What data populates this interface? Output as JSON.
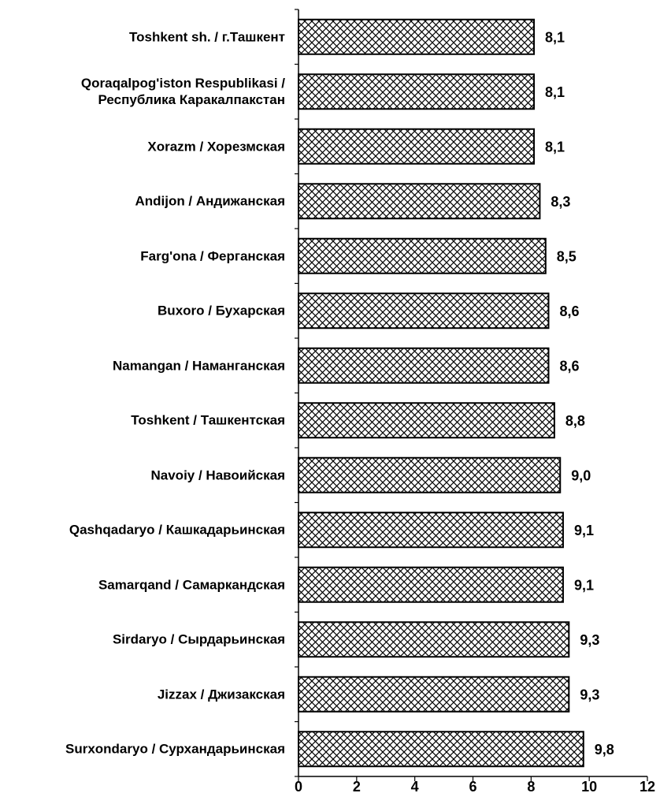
{
  "chart_data": {
    "type": "barh",
    "categories": [
      "Toshkent sh. / г.Ташкент",
      "Qoraqalpog'iston Respublikasi / Республика Каракалпакстан",
      "Xorazm / Хорезмская",
      "Andijon / Андижанская",
      "Farg'ona / Ферганская",
      "Buxoro / Бухарская",
      "Namangan / Наманганская",
      "Toshkent / Ташкентская",
      "Navoiy / Навоийская",
      "Qashqadaryo / Кашкадарьинская",
      "Samarqand / Самаркандская",
      "Sirdaryo / Сырдарьинская",
      "Jizzax / Джизакская",
      "Surxondaryo / Сурхандарьинская"
    ],
    "values": [
      8.1,
      8.1,
      8.1,
      8.3,
      8.5,
      8.6,
      8.6,
      8.8,
      9.0,
      9.1,
      9.1,
      9.3,
      9.3,
      9.8
    ],
    "value_labels": [
      "8,1",
      "8,1",
      "8,1",
      "8,3",
      "8,5",
      "8,6",
      "8,6",
      "8,8",
      "9,0",
      "9,1",
      "9,1",
      "9,3",
      "9,3",
      "9,8"
    ],
    "color": "#000000",
    "xlim": [
      0,
      12
    ],
    "xticks": [
      0,
      2,
      4,
      6,
      8,
      10,
      12
    ]
  }
}
